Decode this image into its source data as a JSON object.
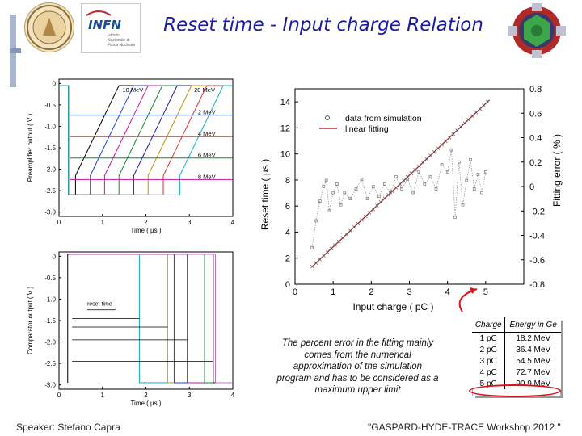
{
  "slide": {
    "title": "Reset time - Input charge Relation",
    "logo_infn": "INFN",
    "logo_infn_sub": "Istituto Nazionale di Fisica Nucleare",
    "footer_left": "Speaker: Stefano Capra",
    "footer_right": "\"GASPARD-HYDE-TRACE Workshop 2012 \"",
    "note": "The percent error in the fitting mainly comes from the numerical approximation of the simulation program and has to be considered as a maximum upper limit",
    "colors": {
      "title": "#1a1aa6",
      "highlight": "#e0101a",
      "fit_line": "#c0282e"
    }
  },
  "table": {
    "headers": [
      "Charge",
      "Energy in Ge"
    ],
    "rows": [
      [
        "1 pC",
        "18.2 MeV"
      ],
      [
        "2 pC",
        "36.4 MeV"
      ],
      [
        "3 pC",
        "54.5 MeV"
      ],
      [
        "4 pC",
        "72.7 MeV"
      ],
      [
        "5 pC",
        "90.9 MeV"
      ]
    ]
  },
  "chart_data": [
    {
      "type": "line",
      "ylabel": "Preamplifier output ( V )",
      "xlabel": "Time ( µs )",
      "xlim": [
        0,
        4
      ],
      "ylim": [
        -3.1,
        0.1
      ],
      "xticks": [
        0,
        1,
        2,
        3,
        4
      ],
      "yticks": [
        0,
        -0.5,
        -1.0,
        -1.5,
        -2.0,
        -2.5,
        -3.0
      ],
      "tick_labels_y": [
        "0",
        "-0.5",
        "-1.0",
        "-1.5",
        "-2.0",
        "-2.5",
        "-3.0"
      ],
      "tick_labels_x": [
        "0",
        "1",
        "2",
        "3",
        "4"
      ],
      "annotations": [
        {
          "text": "10 MeV",
          "x": 1.7,
          "y": -0.2
        },
        {
          "text": "20 MeV",
          "x": 3.35,
          "y": -0.2
        },
        {
          "text": "2 MeV",
          "x": 3.4,
          "y": -0.72
        },
        {
          "text": "4 MeV",
          "x": 3.4,
          "y": -1.22
        },
        {
          "text": "6 MeV",
          "x": 3.4,
          "y": -1.72
        },
        {
          "text": "8 MeV",
          "x": 3.4,
          "y": -2.22
        }
      ],
      "series": [
        {
          "color": "#000000",
          "fall": -2.6,
          "reset": 0.38
        },
        {
          "color": "#1f3fd6",
          "fall": -2.6,
          "reset": 0.72
        },
        {
          "color": "#c8159e",
          "fall": -2.6,
          "reset": 1.05
        },
        {
          "color": "#0e8a2a",
          "fall": -2.6,
          "reset": 1.38
        },
        {
          "color": "#1a1aa0",
          "fall": -2.6,
          "reset": 1.72
        },
        {
          "color": "#c09000",
          "fall": -2.6,
          "reset": 2.05
        },
        {
          "color": "#d73434",
          "fall": -2.6,
          "reset": 2.4
        },
        {
          "color": "#10b0c0",
          "fall": -2.6,
          "reset": 2.78
        }
      ]
    },
    {
      "type": "line",
      "ylabel": "Comparator output ( V )",
      "xlabel": "Time ( µs )",
      "xlim": [
        0,
        4
      ],
      "ylim": [
        -3.1,
        0.1
      ],
      "xticks": [
        0,
        1,
        2,
        3,
        4
      ],
      "yticks": [
        0,
        -0.5,
        -1.0,
        -1.5,
        -2.0,
        -2.5,
        -3.0
      ],
      "tick_labels_y": [
        "0",
        "-0.5",
        "-1.0",
        "-1.5",
        "-2.0",
        "-2.5",
        "-3.0"
      ],
      "tick_labels_x": [
        "0",
        "1",
        "2",
        "3",
        "4"
      ],
      "annotations": [
        {
          "text": "reset time",
          "x": 0.65,
          "y": -1.15
        }
      ],
      "series": [
        {
          "color": "#10b0c0",
          "high": 1.85
        },
        {
          "color": "#c8a000",
          "high": 2.5
        },
        {
          "color": "#1f3fd6",
          "high": 2.65
        },
        {
          "color": "#c8159e",
          "high": 2.95
        },
        {
          "color": "#0e8a2a",
          "high": 3.35
        },
        {
          "color": "#000000",
          "high": 3.55
        },
        {
          "color": "#c070c8",
          "high": 3.6
        }
      ]
    },
    {
      "type": "scatter",
      "xlabel": "Input charge ( pC )",
      "ylabel": "Reset time ( µs )",
      "y2label": "Fitting error ( % )",
      "xlim": [
        0,
        6
      ],
      "ylim": [
        0,
        15
      ],
      "y2lim": [
        -0.8,
        0.8
      ],
      "xticks": [
        0,
        1,
        2,
        3,
        4,
        5
      ],
      "yticks": [
        0,
        2,
        4,
        6,
        8,
        10,
        12,
        14
      ],
      "y2ticks": [
        -0.8,
        -0.6,
        -0.4,
        -0.2,
        0,
        0.2,
        0.4,
        0.6,
        0.8
      ],
      "tick_labels_x": [
        "0",
        "1",
        "2",
        "3",
        "4",
        "5"
      ],
      "tick_labels_y": [
        "0",
        "2",
        "4",
        "6",
        "8",
        "10",
        "12",
        "14"
      ],
      "tick_labels_y2": [
        "-0.8",
        "-0.6",
        "-0.4",
        "-0.2",
        "0",
        "0.2",
        "0.4",
        "0.6",
        "0.8"
      ],
      "legend": [
        {
          "name": "data from simulation",
          "marker": "circle"
        },
        {
          "name": "linear fitting",
          "marker": "line"
        }
      ],
      "fit": {
        "slope": 2.75,
        "intercept": 0.12
      },
      "error_points": [
        [
          0.45,
          -0.5
        ],
        [
          0.55,
          -0.28
        ],
        [
          0.65,
          -0.12
        ],
        [
          0.75,
          0.0
        ],
        [
          0.82,
          0.05
        ],
        [
          0.9,
          -0.2
        ],
        [
          1.0,
          -0.05
        ],
        [
          1.1,
          0.02
        ],
        [
          1.2,
          -0.15
        ],
        [
          1.3,
          -0.05
        ],
        [
          1.45,
          -0.1
        ],
        [
          1.6,
          -0.02
        ],
        [
          1.75,
          0.06
        ],
        [
          1.9,
          -0.1
        ],
        [
          2.05,
          0.0
        ],
        [
          2.2,
          -0.08
        ],
        [
          2.35,
          0.02
        ],
        [
          2.5,
          -0.05
        ],
        [
          2.65,
          0.08
        ],
        [
          2.8,
          -0.02
        ],
        [
          2.95,
          0.06
        ],
        [
          3.1,
          -0.05
        ],
        [
          3.25,
          0.12
        ],
        [
          3.4,
          0.02
        ],
        [
          3.55,
          0.08
        ],
        [
          3.7,
          -0.02
        ],
        [
          3.85,
          0.18
        ],
        [
          4.0,
          0.12
        ],
        [
          4.1,
          0.3
        ],
        [
          4.2,
          -0.25
        ],
        [
          4.3,
          0.2
        ],
        [
          4.4,
          -0.15
        ],
        [
          4.5,
          0.05
        ],
        [
          4.6,
          0.22
        ],
        [
          4.7,
          -0.02
        ],
        [
          4.8,
          0.1
        ],
        [
          4.9,
          -0.05
        ],
        [
          5.0,
          0.12
        ]
      ]
    }
  ]
}
